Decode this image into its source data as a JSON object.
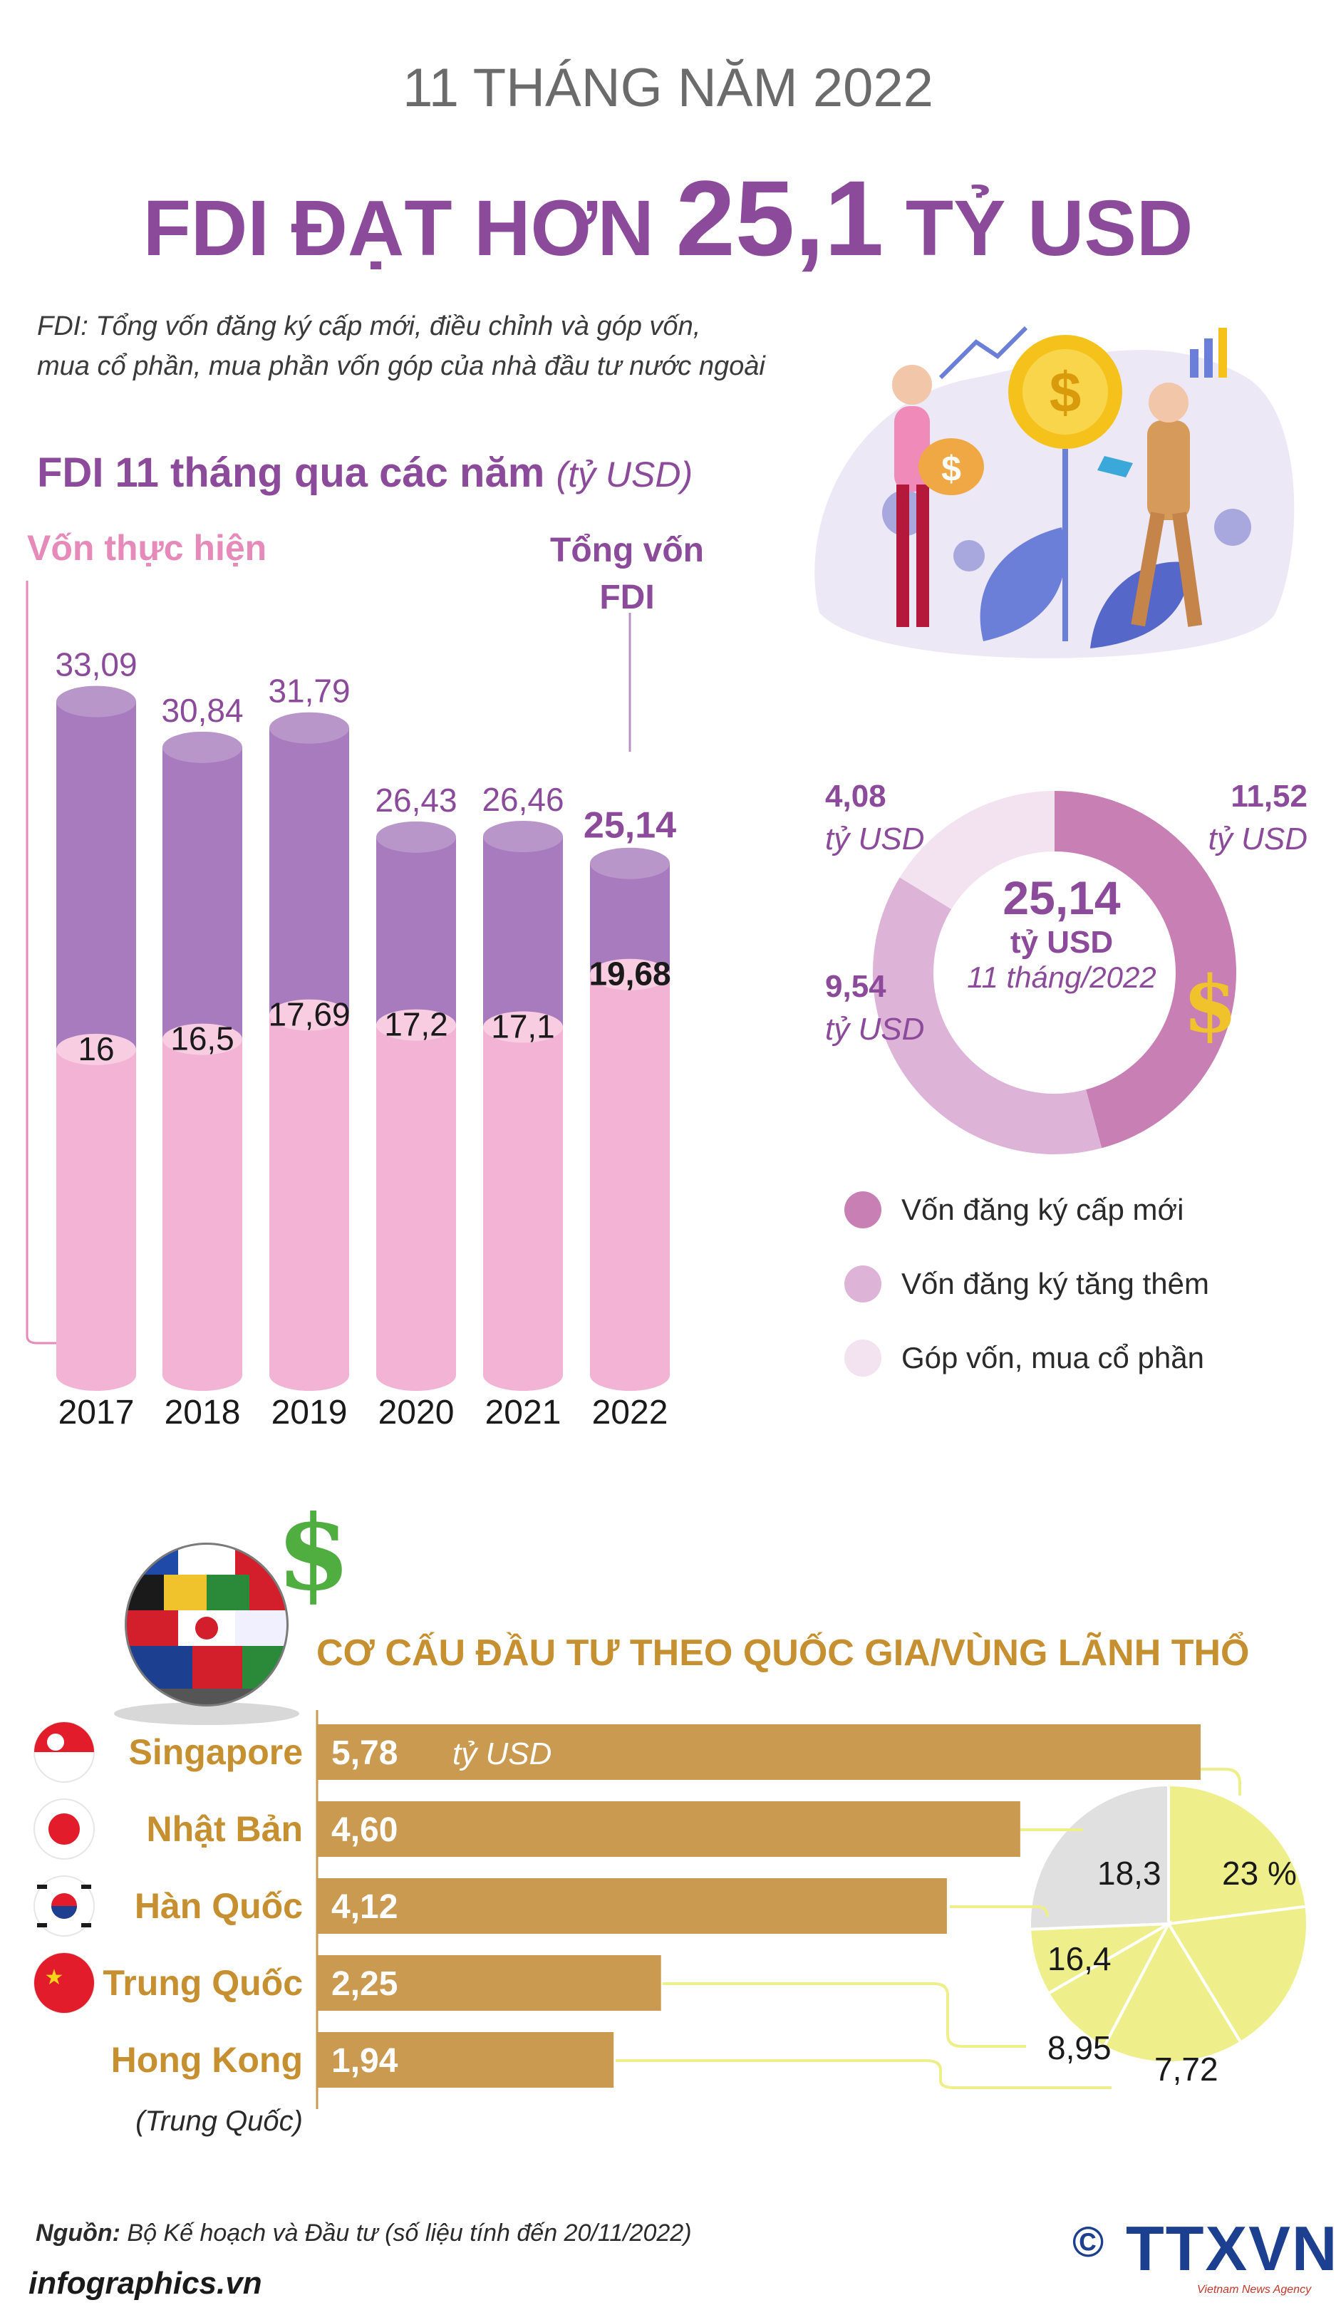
{
  "header": {
    "supertitle": "11 THÁNG NĂM 2022",
    "title_a": "FDI ĐẠT HƠN ",
    "title_b": "25,1",
    "title_c": " TỶ USD"
  },
  "note": {
    "line1": "FDI: Tổng vốn đăng ký cấp mới, điều chỉnh và góp vốn,",
    "line2": "mua cổ phần, mua phần vốn góp của nhà đầu tư nước ngoài"
  },
  "chart_data": [
    {
      "type": "bar",
      "title": "FDI 11 tháng qua các năm",
      "unit": "(tỷ USD)",
      "categories": [
        "2017",
        "2018",
        "2019",
        "2020",
        "2021",
        "2022"
      ],
      "ylim": [
        0,
        35
      ],
      "series": [
        {
          "name": "Tổng vốn FDI",
          "label_a": "Tổng vốn",
          "label_b": "FDI",
          "color": "#a77bbd",
          "values": [
            33.09,
            30.84,
            31.79,
            26.43,
            26.46,
            25.14
          ],
          "labels": [
            "33,09",
            "30,84",
            "31,79",
            "26,43",
            "26,46",
            "25,14"
          ]
        },
        {
          "name": "Vốn thực hiện",
          "color": "#f2b3d4",
          "values": [
            16,
            16.5,
            17.69,
            17.2,
            17.1,
            19.68
          ],
          "labels": [
            "16",
            "16,5",
            "17,69",
            "17,2",
            "17,1",
            "19,68"
          ]
        }
      ]
    },
    {
      "type": "pie",
      "center_value": "25,14",
      "center_unit": "tỷ USD",
      "center_period": "11 tháng/2022",
      "slices": [
        {
          "name": "Vốn đăng ký cấp mới",
          "value": 11.52,
          "label": "11,52",
          "unit": "tỷ USD",
          "color": "#c77fb4"
        },
        {
          "name": "Vốn đăng ký tăng thêm",
          "value": 9.54,
          "label": "9,54",
          "unit": "tỷ USD",
          "color": "#ddb3d7"
        },
        {
          "name": "Góp vốn, mua cổ phần",
          "value": 4.08,
          "label": "4,08",
          "unit": "tỷ USD",
          "color": "#f3e2ef"
        }
      ]
    },
    {
      "type": "bar",
      "title": "CƠ CẤU ĐẦU TƯ THEO QUỐC GIA/VÙNG LÃNH THỔ",
      "unit": "tỷ USD",
      "categories": [
        "Singapore",
        "Nhật Bản",
        "Hàn Quốc",
        "Trung Quốc",
        "Hong Kong"
      ],
      "category_note": "(Trung Quốc)",
      "values": [
        5.78,
        4.6,
        4.12,
        2.25,
        1.94
      ],
      "labels": [
        "5,78",
        "4,60",
        "4,12",
        "2,25",
        "1,94"
      ],
      "color": "#c99a4f",
      "share_pie": {
        "values": [
          23,
          18.3,
          16.4,
          8.95,
          7.72,
          25.63
        ],
        "labels": [
          "23 %",
          "18,3",
          "16,4",
          "8,95",
          "7,72",
          ""
        ],
        "colors": [
          "#eeef8a",
          "#eeef8a",
          "#eeef8a",
          "#eeef8a",
          "#eeef8a",
          "#e0e0e0"
        ]
      }
    }
  ],
  "flags": [
    "singapore-flag",
    "japan-flag",
    "korea-flag",
    "china-flag"
  ],
  "source": {
    "label": "Nguồn:",
    "text": " Bộ Kế hoạch và Đầu tư (số liệu tính đến 20/11/2022)"
  },
  "footer": {
    "site": "infographics.vn",
    "copyright": "©",
    "logo": "TTXVN",
    "logo_sub": "Vietnam News Agency"
  }
}
